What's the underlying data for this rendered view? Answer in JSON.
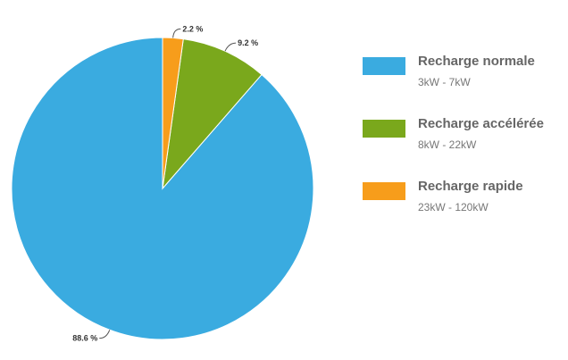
{
  "chart_data": {
    "type": "pie",
    "series": [
      {
        "name": "Recharge normale",
        "subtitle": "3kW - 7kW",
        "value": 88.6,
        "value_label": "88.6 %",
        "color": "#3aabe0"
      },
      {
        "name": "Recharge accélérée",
        "subtitle": "8kW - 22kW",
        "value": 9.2,
        "value_label": "9.2 %",
        "color": "#7aa81c"
      },
      {
        "name": "Recharge rapide",
        "subtitle": "23kW - 120kW",
        "value": 2.2,
        "value_label": "2.2 %",
        "color": "#f79d1b"
      }
    ],
    "legend_position": "right",
    "start_angle_deg": 0,
    "direction": "counterclockwise"
  }
}
